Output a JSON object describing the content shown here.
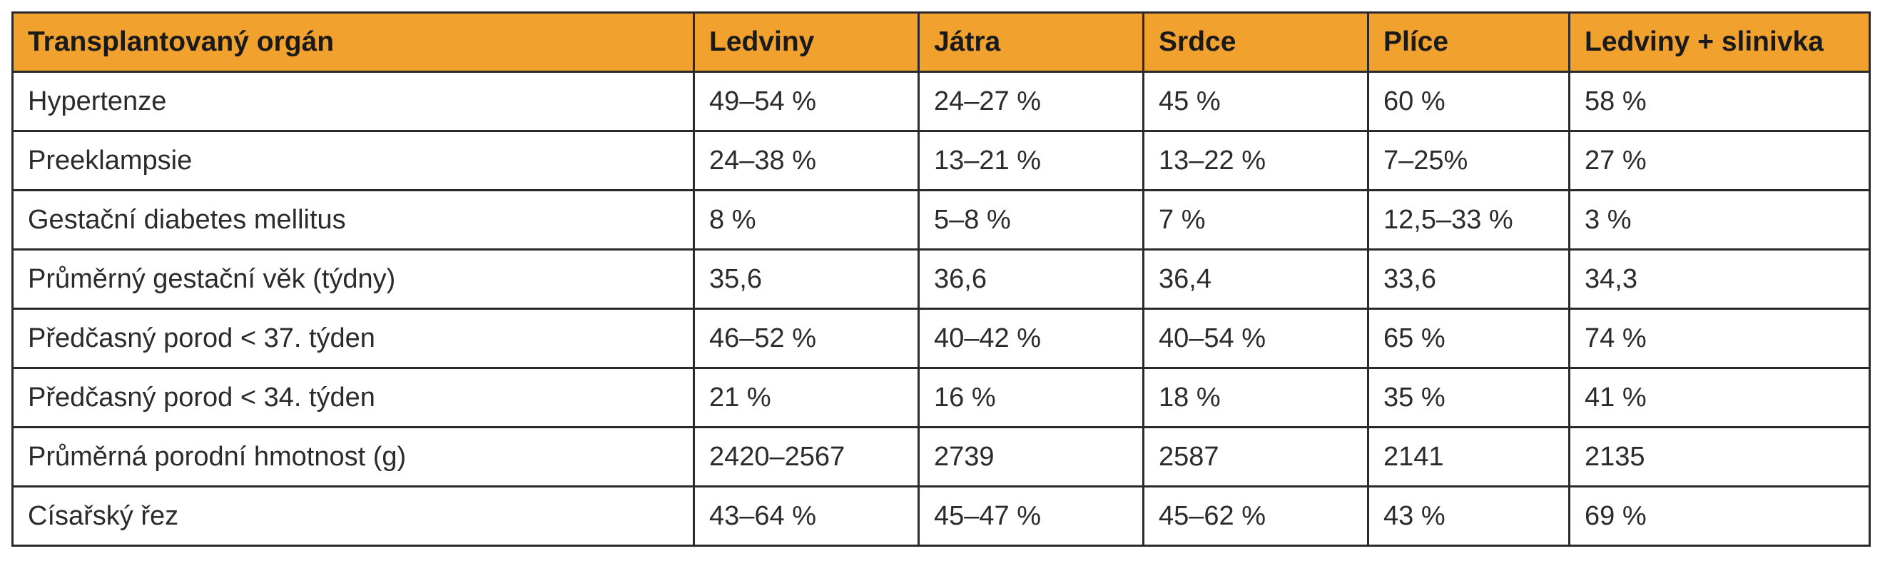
{
  "table": {
    "headers": [
      "Transplantovaný orgán",
      "Ledviny",
      "Játra",
      "Srdce",
      "Plíce",
      "Ledviny + slinivka"
    ],
    "rows": [
      [
        "Hypertenze",
        "49–54 %",
        "24–27 %",
        "45 %",
        "60 %",
        "58 %"
      ],
      [
        "Preeklampsie",
        "24–38 %",
        "13–21 %",
        "13–22 %",
        "7–25%",
        "27 %"
      ],
      [
        "Gestační diabetes mellitus",
        "8 %",
        "5–8 %",
        "7 %",
        "12,5–33 %",
        "3 %"
      ],
      [
        "Průměrný gestační věk (týdny)",
        "35,6",
        "36,6",
        "36,4",
        "33,6",
        "34,3"
      ],
      [
        "Předčasný porod < 37. týden",
        "46–52 %",
        "40–42 %",
        "40–54 %",
        "65 %",
        "74 %"
      ],
      [
        "Předčasný porod < 34. týden",
        "21 %",
        "16 %",
        "18 %",
        "35 %",
        "41 %"
      ],
      [
        "Průměrná porodní hmotnost (g)",
        "2420–2567",
        "2739",
        "2587",
        "2141",
        "2135"
      ],
      [
        "Císařský řez",
        "43–64 %",
        "45–47 %",
        "45–62 %",
        "43 %",
        "69 %"
      ]
    ]
  },
  "colors": {
    "header_background": "#f0a12e",
    "border": "#2a2a2a"
  }
}
